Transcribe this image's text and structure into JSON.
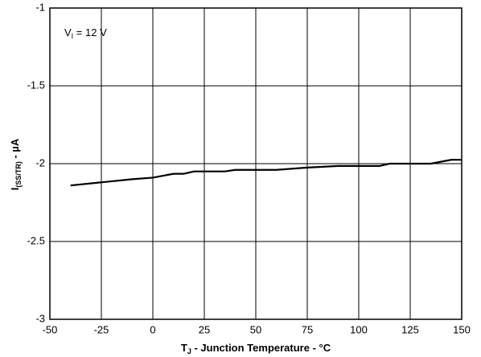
{
  "chart_data": {
    "type": "line",
    "annotation": {
      "main": "V",
      "sub": "I",
      "rest": " = 12 V"
    },
    "x_label": {
      "main": "T",
      "sub": "J",
      "rest": " - Junction Temperature - °C"
    },
    "y_label": {
      "main": "I",
      "sub": "(SS/TR)",
      "rest": " - µA"
    },
    "x": [
      -40,
      -25,
      -10,
      0,
      10,
      15,
      20,
      35,
      40,
      60,
      75,
      90,
      110,
      115,
      135,
      145,
      150
    ],
    "series": [
      {
        "name": "VI = 12 V",
        "color": "#000000",
        "values": [
          -2.14,
          -2.12,
          -2.1,
          -2.09,
          -2.065,
          -2.065,
          -2.05,
          -2.05,
          -2.04,
          -2.04,
          -2.025,
          -2.015,
          -2.015,
          -2.0,
          -2.0,
          -1.975,
          -1.975
        ]
      }
    ],
    "xlim": [
      -50,
      150
    ],
    "xticks": [
      -50,
      -25,
      0,
      25,
      50,
      75,
      100,
      125,
      150
    ],
    "ylim": [
      -3,
      -1
    ],
    "yticks": [
      -1,
      -1.5,
      -2,
      -2.5,
      -3
    ],
    "grid": true
  }
}
